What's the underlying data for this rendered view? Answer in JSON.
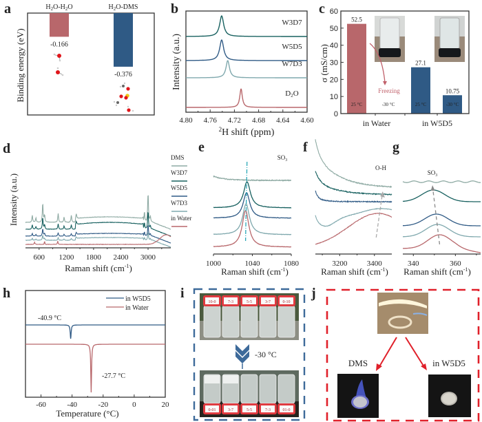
{
  "panel_labels": [
    "a",
    "b",
    "c",
    "d",
    "e",
    "f",
    "g",
    "h",
    "i",
    "j"
  ],
  "colors": {
    "red": "#b8676b",
    "blue": "#2f5a85",
    "teal_dark": "#17605f",
    "light_teal": "#7fa8ad",
    "dms_grey": "#8eaaa3",
    "dash_blue": "#3d6a9a",
    "dash_red": "#e0202a"
  },
  "chart_data": [
    {
      "id": "a",
      "type": "bar",
      "title": "",
      "ylabel": "Binding energy (eV)",
      "categories": [
        "H2O-H2O",
        "H2O-DMS"
      ],
      "category_labels": [
        {
          "base": "H",
          "sub": "2",
          "rest": "O-H",
          "sub2": "2",
          "rest2": "O"
        },
        {
          "base": "H",
          "sub": "2",
          "rest": "O-DMS"
        }
      ],
      "values": [
        -0.166,
        -0.376
      ],
      "value_labels": [
        "-0.166",
        "-0.376"
      ],
      "ylim": [
        -0.7,
        0
      ]
    },
    {
      "id": "b",
      "type": "line",
      "xlabel": "2H shift (ppm)",
      "xlabel_sup": "2",
      "xlabel_rest": "H shift (ppm)",
      "ylabel": "Intensity (a.u.)",
      "xlim": [
        4.8,
        4.6
      ],
      "xticks": [
        "4.80",
        "4.76",
        "4.72",
        "4.68",
        "4.64",
        "4.60"
      ],
      "series": [
        {
          "name": "W3D7",
          "peak": 4.741,
          "width": 0.004,
          "color_key": "teal_dark"
        },
        {
          "name": "W5D5",
          "peak": 4.741,
          "width": 0.004,
          "color_key": "blue"
        },
        {
          "name": "W7D3",
          "peak": 4.731,
          "width": 0.0035,
          "color_key": "light_teal"
        },
        {
          "name": "D2O",
          "label_base": "D",
          "label_sub": "2",
          "label_rest": "O",
          "peak": 4.709,
          "width": 0.0025,
          "color_key": "red"
        }
      ]
    },
    {
      "id": "c",
      "type": "bar",
      "ylabel": "σ (mS/cm)",
      "ylim": [
        0,
        60
      ],
      "yticks": [
        "0",
        "10",
        "20",
        "30",
        "40",
        "50",
        "60"
      ],
      "categories": [
        "in Water",
        "in W5D5"
      ],
      "bars": [
        {
          "group": "in Water",
          "temp": "25 °C",
          "value": 52.5,
          "label": "52.5",
          "color_key": "red"
        },
        {
          "group": "in Water",
          "temp": "-30 °C",
          "value": 0,
          "label": "",
          "color_key": "red"
        },
        {
          "group": "in W5D5",
          "temp": "25 °C",
          "value": 27.1,
          "label": "27.1",
          "color_key": "blue"
        },
        {
          "group": "in W5D5",
          "temp": "-30 °C",
          "value": 10.75,
          "label": "10.75",
          "color_key": "blue"
        }
      ],
      "annotation": "Freezing"
    },
    {
      "id": "d",
      "type": "line",
      "xlabel": "Raman shift (cm-1)",
      "xlabel_main": "Raman shift (cm",
      "xlabel_sup": "-1",
      "xlabel_end": ")",
      "ylabel": "Intensity (a.u.)",
      "xlim": [
        300,
        3500
      ],
      "xticks": [
        "600",
        "1200",
        "1800",
        "2400",
        "3000"
      ],
      "legend": [
        "DMS",
        "W3D7",
        "W5D5",
        "W7D3",
        "in Water"
      ],
      "legend_position": "right"
    },
    {
      "id": "e",
      "type": "line",
      "xlabel_main": "Raman shift (cm",
      "xlabel_sup": "-1",
      "xlabel_end": ")",
      "xlim": [
        1000,
        1080
      ],
      "xticks": [
        "1000",
        "1040",
        "1080"
      ],
      "annotation": "SO3",
      "annotation_base": "SO",
      "annotation_sub": "3",
      "peak_center": 1034
    },
    {
      "id": "f",
      "type": "line",
      "xlabel_main": "Raman shift (cm",
      "xlabel_sup": "-1",
      "xlabel_end": ")",
      "xlim": [
        3060,
        3500
      ],
      "xticks": [
        "3200",
        "3400"
      ],
      "annotation": "O-H"
    },
    {
      "id": "g",
      "type": "line",
      "xlabel_main": "Raman shift (cm",
      "xlabel_sup": "-1",
      "xlabel_end": ")",
      "xlim": [
        335,
        372
      ],
      "xticks": [
        "340",
        "360"
      ],
      "annotation_base": "SO",
      "annotation_sub": "3"
    },
    {
      "id": "h",
      "type": "line",
      "xlabel": "Temperature (°C)",
      "xlim": [
        -70,
        20
      ],
      "xticks": [
        "-60",
        "-40",
        "-20",
        "0",
        "20"
      ],
      "legend": [
        {
          "name": "in W5D5",
          "color_key": "blue"
        },
        {
          "name": "in Water",
          "color_key": "red"
        }
      ],
      "legend_position": "top-right",
      "series": [
        {
          "name": "in W5D5",
          "dip_at": -40.9,
          "label": "-40.9 °C",
          "color_key": "blue"
        },
        {
          "name": "in Water",
          "dip_at": -27.7,
          "label": "-27.7 °C",
          "color_key": "red"
        }
      ]
    }
  ],
  "panel_i": {
    "arrow_label": "-30 °C",
    "vial_labels_top": [
      "10-0",
      "7-3",
      "5-5",
      "3-7",
      "0-10"
    ],
    "vial_labels_bottom": [
      "10-0",
      "7-3",
      "5-5",
      "3-7",
      "0-10"
    ]
  },
  "panel_j": {
    "left_label": "DMS",
    "right_label": "in W5D5"
  }
}
